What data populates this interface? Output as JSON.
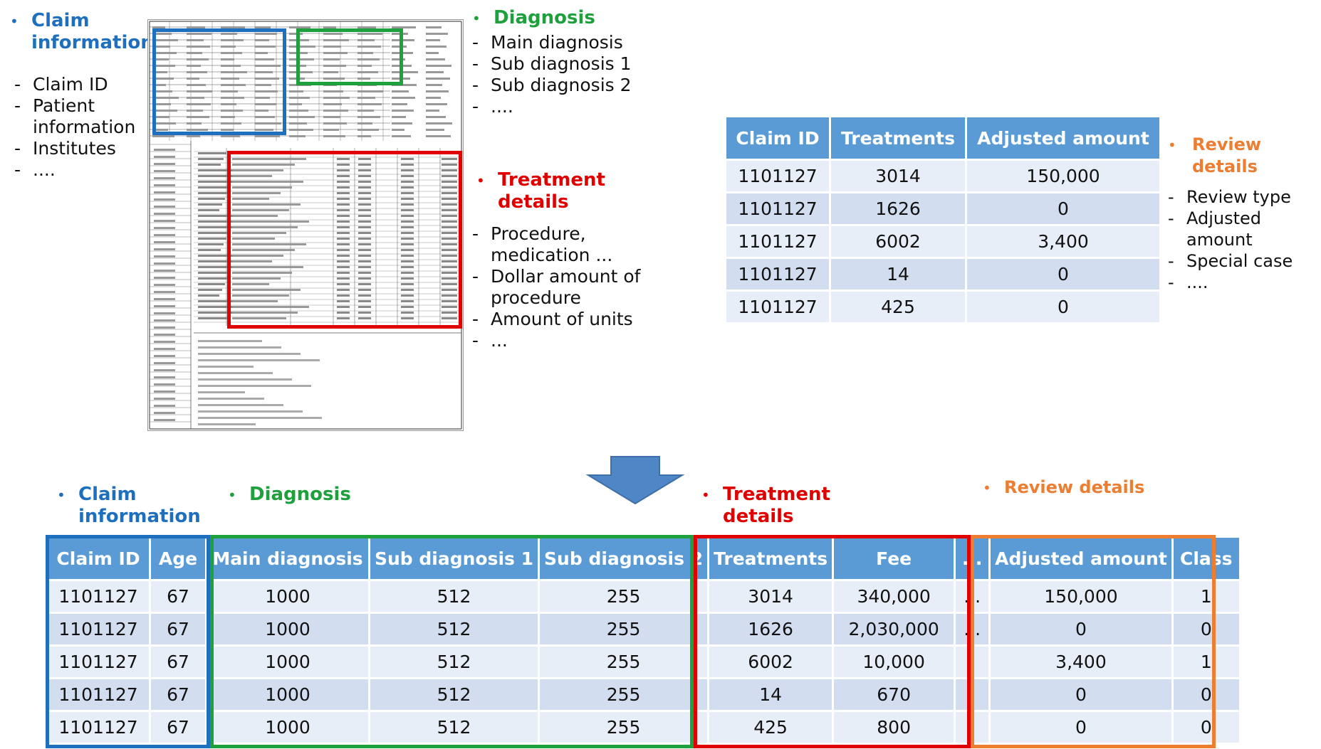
{
  "top": {
    "claim_group": {
      "title": "Claim information",
      "items": [
        "Claim ID",
        "Patient information",
        "Institutes",
        "...."
      ]
    },
    "diagnosis_group": {
      "title": "Diagnosis",
      "items": [
        "Main diagnosis",
        "Sub diagnosis 1",
        "Sub diagnosis 2",
        "...."
      ]
    },
    "treatment_group": {
      "title": "Treatment details",
      "items": [
        "Procedure, medication ...",
        "Dollar amount of procedure",
        "Amount of units",
        "..."
      ]
    },
    "review_group": {
      "title": "Review details",
      "items": [
        "Review type",
        "Adjusted amount",
        "Special case",
        "...."
      ]
    }
  },
  "review_table": {
    "headers": [
      "Claim ID",
      "Treatments",
      "Adjusted amount"
    ],
    "rows": [
      [
        "1101127",
        "3014",
        "150,000"
      ],
      [
        "1101127",
        "1626",
        "0"
      ],
      [
        "1101127",
        "6002",
        "3,400"
      ],
      [
        "1101127",
        "14",
        "0"
      ],
      [
        "1101127",
        "425",
        "0"
      ]
    ]
  },
  "bottom_labels": {
    "claim": "Claim information",
    "diagnosis": "Diagnosis",
    "treatment": "Treatment details",
    "review": "Review details"
  },
  "merged_table": {
    "headers": [
      "Claim ID",
      "Age",
      "Main diagnosis",
      "Sub diagnosis 1",
      "Sub diagnosis 2",
      "Treatments",
      "Fee",
      "...",
      "Adjusted amount",
      "Class"
    ],
    "rows": [
      [
        "1101127",
        "67",
        "1000",
        "512",
        "255",
        "3014",
        "340,000",
        "...",
        "150,000",
        "1"
      ],
      [
        "1101127",
        "67",
        "1000",
        "512",
        "255",
        "1626",
        "2,030,000",
        "...",
        "0",
        "0"
      ],
      [
        "1101127",
        "67",
        "1000",
        "512",
        "255",
        "6002",
        "10,000",
        "",
        "3,400",
        "1"
      ],
      [
        "1101127",
        "67",
        "1000",
        "512",
        "255",
        "14",
        "670",
        "",
        "0",
        "0"
      ],
      [
        "1101127",
        "67",
        "1000",
        "512",
        "255",
        "425",
        "800",
        "",
        "0",
        "0"
      ]
    ]
  },
  "colors": {
    "claim": "#1f6fbf",
    "diagnosis": "#1ea03c",
    "treatment": "#e00000",
    "review": "#ec7d31",
    "header": "#5b9bd5"
  }
}
